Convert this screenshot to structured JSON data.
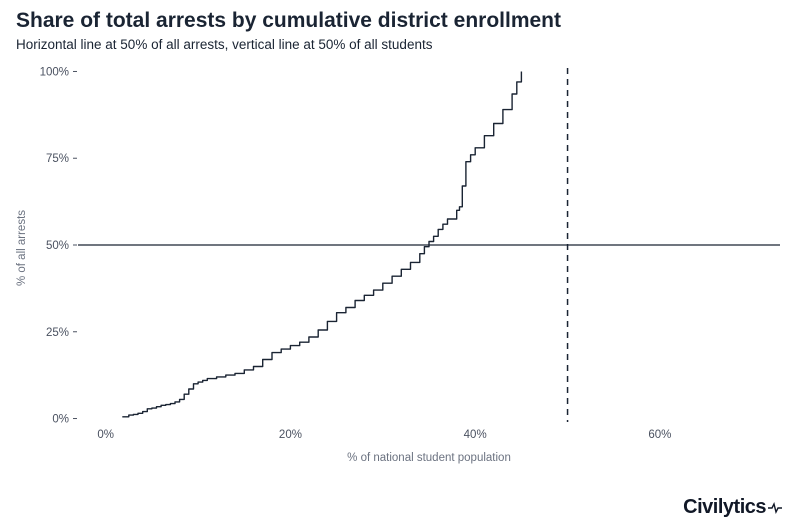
{
  "chart_data": {
    "type": "line",
    "title": "Share of total arrests by cumulative district enrollment",
    "subtitle": "Horizontal line at 50% of all arrests, vertical line at 50% of all students",
    "xlabel": "% of national student population",
    "ylabel": "% of all arrests",
    "x_ticks": [
      "0%",
      "20%",
      "40%",
      "60%"
    ],
    "y_ticks": [
      "0%",
      "25%",
      "50%",
      "75%",
      "100%"
    ],
    "xlim": [
      -3,
      73
    ],
    "ylim": [
      -1,
      101
    ],
    "reference_lines": {
      "horizontal_y": 50,
      "vertical_x": 50
    },
    "grid": false,
    "series": [
      {
        "x": [
          1.8,
          2.5,
          3.0,
          3.5,
          4.0,
          4.5,
          5.0,
          5.5,
          6.0,
          6.5,
          7.0,
          7.5,
          8.0,
          8.5,
          9.0,
          9.5,
          10.0,
          10.5,
          11.0,
          12.0,
          13.0,
          14.0,
          15.0,
          16.0,
          17.0,
          18.0,
          19.0,
          20.0,
          21.0,
          22.0,
          23.0,
          24.0,
          25.0,
          26.0,
          27.0,
          28.0,
          29.0,
          30.0,
          31.0,
          32.0,
          33.0,
          34.0,
          34.5,
          35.0,
          35.5,
          36.0,
          36.5,
          37.0,
          38.0,
          38.3,
          38.6,
          39.0,
          39.5,
          40.0,
          41.0,
          42.0,
          43.0,
          44.0,
          44.5,
          45.0
        ],
        "y": [
          0.5,
          1.0,
          1.2,
          1.5,
          2.0,
          2.8,
          3.0,
          3.4,
          3.8,
          4.0,
          4.3,
          4.8,
          5.5,
          7.0,
          8.5,
          10.0,
          10.5,
          11.0,
          11.5,
          12.0,
          12.5,
          13.0,
          14.0,
          15.0,
          17.0,
          19.0,
          20.0,
          21.0,
          22.0,
          23.5,
          25.5,
          28.0,
          30.5,
          32.0,
          34.0,
          35.5,
          37.0,
          39.0,
          41.0,
          43.0,
          45.0,
          47.5,
          49.5,
          51.0,
          52.5,
          54.5,
          56.0,
          57.5,
          60.0,
          61.0,
          67.0,
          74.0,
          76.0,
          78.0,
          81.5,
          85.0,
          89.0,
          93.5,
          97.0,
          100.0
        ]
      }
    ]
  },
  "brand": {
    "name": "Civilytics"
  }
}
